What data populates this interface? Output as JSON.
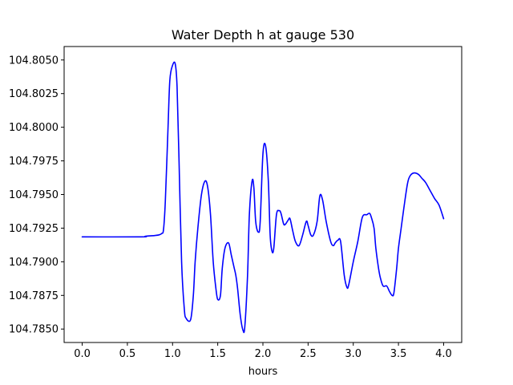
{
  "chart_data": {
    "type": "line",
    "title": "Water Depth h at gauge 530",
    "xlabel": "hours",
    "ylabel": "",
    "xlim": [
      -0.2,
      4.2
    ],
    "ylim": [
      104.784,
      104.806
    ],
    "xticks": [
      0.0,
      0.5,
      1.0,
      1.5,
      2.0,
      2.5,
      3.0,
      3.5,
      4.0
    ],
    "xtick_labels": [
      "0.0",
      "0.5",
      "1.0",
      "1.5",
      "2.0",
      "2.5",
      "3.0",
      "3.5",
      "4.0"
    ],
    "yticks": [
      104.785,
      104.7875,
      104.79,
      104.7925,
      104.795,
      104.7975,
      104.8,
      104.8025,
      104.805
    ],
    "ytick_labels": [
      "104.7850",
      "104.7875",
      "104.7900",
      "104.7925",
      "104.7950",
      "104.7975",
      "104.8000",
      "104.8025",
      "104.8050"
    ],
    "grid": false,
    "series": [
      {
        "color": "#0000ff",
        "x": [
          0.0,
          0.65,
          0.7,
          0.8,
          0.85,
          0.88,
          0.9,
          0.92,
          0.95,
          0.97,
          1.0,
          1.03,
          1.05,
          1.07,
          1.1,
          1.13,
          1.15,
          1.2,
          1.23,
          1.25,
          1.28,
          1.32,
          1.36,
          1.39,
          1.42,
          1.45,
          1.48,
          1.5,
          1.53,
          1.55,
          1.58,
          1.62,
          1.65,
          1.68,
          1.7,
          1.72,
          1.75,
          1.78,
          1.8,
          1.83,
          1.85,
          1.88,
          1.9,
          1.92,
          1.95,
          1.97,
          2.0,
          2.03,
          2.06,
          2.08,
          2.1,
          2.12,
          2.15,
          2.18,
          2.2,
          2.23,
          2.25,
          2.28,
          2.3,
          2.33,
          2.36,
          2.4,
          2.44,
          2.48,
          2.5,
          2.53,
          2.56,
          2.6,
          2.63,
          2.66,
          2.7,
          2.75,
          2.78,
          2.8,
          2.83,
          2.86,
          2.9,
          2.93,
          2.95,
          3.0,
          3.05,
          3.1,
          3.15,
          3.18,
          3.2,
          3.23,
          3.25,
          3.28,
          3.3,
          3.33,
          3.37,
          3.4,
          3.43,
          3.45,
          3.48,
          3.5,
          3.53,
          3.56,
          3.6,
          3.63,
          3.67,
          3.72,
          3.76,
          3.8,
          3.85,
          3.9,
          3.95,
          4.0
        ],
        "values": [
          104.79185,
          104.79185,
          104.7919,
          104.79195,
          104.792,
          104.7921,
          104.7924,
          104.7945,
          104.8,
          104.8035,
          104.8046,
          104.8047,
          104.803,
          104.798,
          104.79,
          104.7865,
          104.7858,
          104.7857,
          104.7875,
          104.79,
          104.7925,
          104.795,
          104.796,
          104.7955,
          104.7935,
          104.79,
          104.788,
          104.7872,
          104.7875,
          104.7895,
          104.791,
          104.7914,
          104.7905,
          104.7896,
          104.789,
          104.788,
          104.786,
          104.7849,
          104.7852,
          104.789,
          104.7935,
          104.796,
          104.7955,
          104.793,
          104.7922,
          104.793,
          104.798,
          104.7986,
          104.796,
          104.792,
          104.7908,
          104.791,
          104.7935,
          104.7938,
          104.7936,
          104.7928,
          104.7928,
          104.7931,
          104.7932,
          104.7923,
          104.7915,
          104.7912,
          104.792,
          104.793,
          104.7927,
          104.792,
          104.792,
          104.793,
          104.7949,
          104.7946,
          104.793,
          104.7915,
          104.7912,
          104.7914,
          104.7916,
          104.7915,
          104.789,
          104.7881,
          104.7883,
          104.79,
          104.7915,
          104.7933,
          104.7935,
          104.7936,
          104.7933,
          104.7925,
          104.791,
          104.7895,
          104.7888,
          104.7882,
          104.7882,
          104.7878,
          104.7875,
          104.7877,
          104.7895,
          104.791,
          104.7925,
          104.794,
          104.7958,
          104.7964,
          104.7966,
          104.7965,
          104.7962,
          104.7959,
          104.7953,
          104.7947,
          104.7942,
          104.7932
        ]
      }
    ]
  }
}
